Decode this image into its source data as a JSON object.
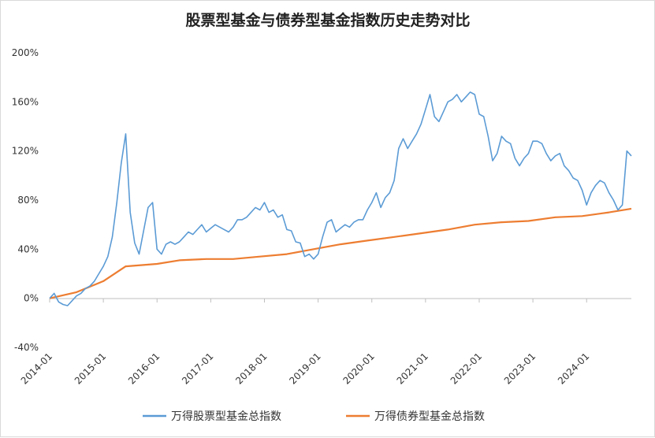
{
  "chart_data": {
    "type": "line",
    "title": "股票型基金与债券型基金指数历史走势对比",
    "xlabel": "",
    "ylabel": "",
    "y_unit": "%",
    "ylim": [
      -40,
      200
    ],
    "y_ticks": [
      -40,
      0,
      40,
      80,
      120,
      160,
      200
    ],
    "y_tick_labels": [
      "-40%",
      "0%",
      "40%",
      "80%",
      "120%",
      "160%",
      "200%"
    ],
    "x_range": [
      "2014-01",
      "2024-11"
    ],
    "x_ticks": [
      "2014-01",
      "2015-01",
      "2016-01",
      "2017-01",
      "2018-01",
      "2019-01",
      "2020-01",
      "2021-01",
      "2022-01",
      "2023-01",
      "2024-01"
    ],
    "grid": false,
    "legend_position": "bottom",
    "series": [
      {
        "name": "万得股票型基金总指数",
        "color": "#5b9bd5",
        "points": [
          [
            "2014-01",
            0
          ],
          [
            "2014-02",
            4
          ],
          [
            "2014-03",
            -3
          ],
          [
            "2014-04",
            -5
          ],
          [
            "2014-05",
            -6
          ],
          [
            "2014-06",
            -2
          ],
          [
            "2014-07",
            2
          ],
          [
            "2014-08",
            4
          ],
          [
            "2014-09",
            8
          ],
          [
            "2014-10",
            10
          ],
          [
            "2014-11",
            14
          ],
          [
            "2014-12",
            20
          ],
          [
            "2015-01",
            26
          ],
          [
            "2015-02",
            34
          ],
          [
            "2015-03",
            50
          ],
          [
            "2015-04",
            78
          ],
          [
            "2015-05",
            110
          ],
          [
            "2015-06",
            134
          ],
          [
            "2015-07",
            70
          ],
          [
            "2015-08",
            45
          ],
          [
            "2015-09",
            36
          ],
          [
            "2015-10",
            55
          ],
          [
            "2015-11",
            74
          ],
          [
            "2015-12",
            78
          ],
          [
            "2016-01",
            40
          ],
          [
            "2016-02",
            36
          ],
          [
            "2016-03",
            44
          ],
          [
            "2016-04",
            46
          ],
          [
            "2016-05",
            44
          ],
          [
            "2016-06",
            46
          ],
          [
            "2016-07",
            50
          ],
          [
            "2016-08",
            54
          ],
          [
            "2016-09",
            52
          ],
          [
            "2016-10",
            56
          ],
          [
            "2016-11",
            60
          ],
          [
            "2016-12",
            54
          ],
          [
            "2017-01",
            57
          ],
          [
            "2017-02",
            60
          ],
          [
            "2017-03",
            58
          ],
          [
            "2017-04",
            56
          ],
          [
            "2017-05",
            54
          ],
          [
            "2017-06",
            58
          ],
          [
            "2017-07",
            64
          ],
          [
            "2017-08",
            64
          ],
          [
            "2017-09",
            66
          ],
          [
            "2017-10",
            70
          ],
          [
            "2017-11",
            74
          ],
          [
            "2017-12",
            72
          ],
          [
            "2018-01",
            78
          ],
          [
            "2018-02",
            70
          ],
          [
            "2018-03",
            72
          ],
          [
            "2018-04",
            66
          ],
          [
            "2018-05",
            68
          ],
          [
            "2018-06",
            56
          ],
          [
            "2018-07",
            55
          ],
          [
            "2018-08",
            46
          ],
          [
            "2018-09",
            45
          ],
          [
            "2018-10",
            34
          ],
          [
            "2018-11",
            36
          ],
          [
            "2018-12",
            32
          ],
          [
            "2019-01",
            36
          ],
          [
            "2019-02",
            50
          ],
          [
            "2019-03",
            62
          ],
          [
            "2019-04",
            64
          ],
          [
            "2019-05",
            54
          ],
          [
            "2019-06",
            57
          ],
          [
            "2019-07",
            60
          ],
          [
            "2019-08",
            58
          ],
          [
            "2019-09",
            62
          ],
          [
            "2019-10",
            64
          ],
          [
            "2019-11",
            64
          ],
          [
            "2019-12",
            72
          ],
          [
            "2020-01",
            78
          ],
          [
            "2020-02",
            86
          ],
          [
            "2020-03",
            74
          ],
          [
            "2020-04",
            82
          ],
          [
            "2020-05",
            86
          ],
          [
            "2020-06",
            96
          ],
          [
            "2020-07",
            122
          ],
          [
            "2020-08",
            130
          ],
          [
            "2020-09",
            122
          ],
          [
            "2020-10",
            128
          ],
          [
            "2020-11",
            134
          ],
          [
            "2020-12",
            142
          ],
          [
            "2021-01",
            154
          ],
          [
            "2021-02",
            166
          ],
          [
            "2021-03",
            148
          ],
          [
            "2021-04",
            144
          ],
          [
            "2021-05",
            152
          ],
          [
            "2021-06",
            160
          ],
          [
            "2021-07",
            162
          ],
          [
            "2021-08",
            166
          ],
          [
            "2021-09",
            160
          ],
          [
            "2021-10",
            164
          ],
          [
            "2021-11",
            168
          ],
          [
            "2021-12",
            166
          ],
          [
            "2022-01",
            150
          ],
          [
            "2022-02",
            148
          ],
          [
            "2022-03",
            132
          ],
          [
            "2022-04",
            112
          ],
          [
            "2022-05",
            118
          ],
          [
            "2022-06",
            132
          ],
          [
            "2022-07",
            128
          ],
          [
            "2022-08",
            126
          ],
          [
            "2022-09",
            114
          ],
          [
            "2022-10",
            108
          ],
          [
            "2022-11",
            114
          ],
          [
            "2022-12",
            118
          ],
          [
            "2023-01",
            128
          ],
          [
            "2023-02",
            128
          ],
          [
            "2023-03",
            126
          ],
          [
            "2023-04",
            118
          ],
          [
            "2023-05",
            112
          ],
          [
            "2023-06",
            116
          ],
          [
            "2023-07",
            118
          ],
          [
            "2023-08",
            108
          ],
          [
            "2023-09",
            104
          ],
          [
            "2023-10",
            98
          ],
          [
            "2023-11",
            96
          ],
          [
            "2023-12",
            88
          ],
          [
            "2024-01",
            76
          ],
          [
            "2024-02",
            86
          ],
          [
            "2024-03",
            92
          ],
          [
            "2024-04",
            96
          ],
          [
            "2024-05",
            94
          ],
          [
            "2024-06",
            86
          ],
          [
            "2024-07",
            80
          ],
          [
            "2024-08",
            72
          ],
          [
            "2024-09",
            76
          ],
          [
            "2024-10",
            120
          ],
          [
            "2024-11",
            116
          ]
        ]
      },
      {
        "name": "万得债券型基金总指数",
        "color": "#ed7d31",
        "points": [
          [
            "2014-01",
            0
          ],
          [
            "2014-07",
            5
          ],
          [
            "2015-01",
            14
          ],
          [
            "2015-06",
            26
          ],
          [
            "2016-01",
            28
          ],
          [
            "2016-06",
            31
          ],
          [
            "2016-12",
            32
          ],
          [
            "2017-06",
            32
          ],
          [
            "2017-12",
            34
          ],
          [
            "2018-06",
            36
          ],
          [
            "2018-12",
            40
          ],
          [
            "2019-06",
            44
          ],
          [
            "2019-12",
            47
          ],
          [
            "2020-06",
            50
          ],
          [
            "2020-12",
            53
          ],
          [
            "2021-06",
            56
          ],
          [
            "2021-12",
            60
          ],
          [
            "2022-06",
            62
          ],
          [
            "2022-12",
            63
          ],
          [
            "2023-06",
            66
          ],
          [
            "2023-12",
            67
          ],
          [
            "2024-06",
            70
          ],
          [
            "2024-11",
            73
          ]
        ]
      }
    ]
  }
}
